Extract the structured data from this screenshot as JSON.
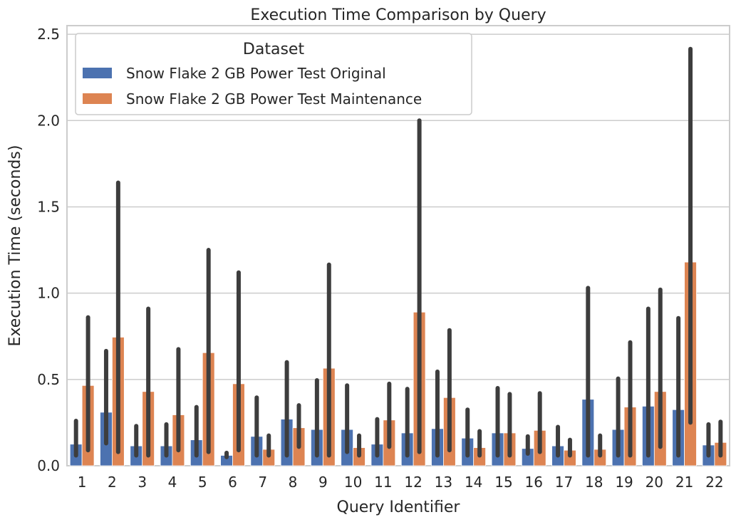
{
  "chart_data": {
    "type": "bar",
    "title": "Execution Time Comparison by Query",
    "xlabel": "Query Identifier",
    "ylabel": "Execution Time (seconds)",
    "ylim": [
      0,
      2.55
    ],
    "yticks": [
      0.0,
      0.5,
      1.0,
      1.5,
      2.0,
      2.5
    ],
    "ytick_labels": [
      "0.0",
      "0.5",
      "1.0",
      "1.5",
      "2.0",
      "2.5"
    ],
    "grid": true,
    "legend": {
      "title": "Dataset",
      "placement": "top-left"
    },
    "categories": [
      "1",
      "2",
      "3",
      "4",
      "5",
      "6",
      "7",
      "8",
      "9",
      "10",
      "11",
      "12",
      "13",
      "14",
      "15",
      "16",
      "17",
      "18",
      "19",
      "20",
      "21",
      "22"
    ],
    "series": [
      {
        "name": "Snow Flake 2 GB Power Test Original",
        "color": "#4c72b0",
        "values": [
          0.125,
          0.31,
          0.115,
          0.115,
          0.15,
          0.06,
          0.17,
          0.27,
          0.21,
          0.21,
          0.125,
          0.19,
          0.215,
          0.16,
          0.19,
          0.1,
          0.115,
          0.385,
          0.21,
          0.345,
          0.325,
          0.12
        ],
        "ci_low": [
          0.06,
          0.13,
          0.06,
          0.06,
          0.06,
          0.05,
          0.06,
          0.06,
          0.06,
          0.08,
          0.06,
          0.06,
          0.06,
          0.06,
          0.06,
          0.07,
          0.06,
          0.06,
          0.06,
          0.06,
          0.06,
          0.06
        ],
        "ci_high": [
          0.26,
          0.665,
          0.23,
          0.24,
          0.34,
          0.075,
          0.395,
          0.6,
          0.495,
          0.465,
          0.27,
          0.445,
          0.545,
          0.325,
          0.45,
          0.17,
          0.225,
          1.03,
          0.505,
          0.91,
          0.855,
          0.24
        ]
      },
      {
        "name": "Snow Flake 2 GB Power Test Maintenance",
        "color": "#dd8452",
        "values": [
          0.465,
          0.745,
          0.43,
          0.295,
          0.655,
          0.475,
          0.095,
          0.22,
          0.565,
          0.105,
          0.265,
          0.89,
          0.395,
          0.105,
          0.19,
          0.205,
          0.09,
          0.095,
          0.34,
          0.43,
          1.18,
          0.135
        ],
        "ci_low": [
          0.09,
          0.08,
          0.06,
          0.09,
          0.08,
          0.09,
          0.06,
          0.11,
          0.06,
          0.06,
          0.11,
          0.08,
          0.09,
          0.06,
          0.06,
          0.08,
          0.06,
          0.06,
          0.06,
          0.11,
          0.25,
          0.06
        ],
        "ci_high": [
          0.86,
          1.64,
          0.91,
          0.675,
          1.25,
          1.12,
          0.175,
          0.35,
          1.165,
          0.175,
          0.475,
          2.0,
          0.785,
          0.2,
          0.415,
          0.42,
          0.15,
          0.175,
          0.715,
          1.02,
          2.415,
          0.255
        ]
      }
    ]
  }
}
